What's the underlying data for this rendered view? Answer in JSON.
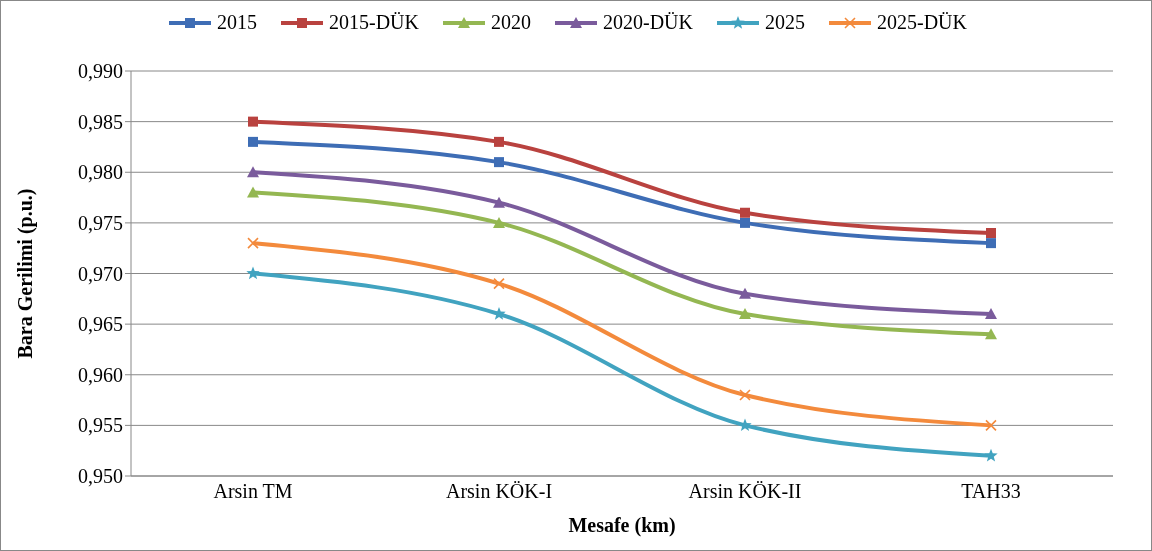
{
  "chart_data": {
    "type": "line",
    "xlabel": "Mesafe (km)",
    "ylabel": "Bara  Gerilimi (p.u.)",
    "categories": [
      "Arsin TM",
      "Arsin KÖK-I",
      "Arsin KÖK-II",
      "TAH33"
    ],
    "series": [
      {
        "name": "2015",
        "color": "#3e6db5",
        "marker": "square",
        "values": [
          0.983,
          0.981,
          0.975,
          0.973
        ]
      },
      {
        "name": "2015-DÜK",
        "color": "#b9423f",
        "marker": "square",
        "values": [
          0.985,
          0.983,
          0.976,
          0.974
        ]
      },
      {
        "name": "2020",
        "color": "#94b752",
        "marker": "triangle",
        "values": [
          0.978,
          0.975,
          0.966,
          0.964
        ]
      },
      {
        "name": "2020-DÜK",
        "color": "#7a5b9c",
        "marker": "triangle",
        "values": [
          0.98,
          0.977,
          0.968,
          0.966
        ]
      },
      {
        "name": "2025",
        "color": "#41a3c0",
        "marker": "star",
        "values": [
          0.97,
          0.966,
          0.955,
          0.952
        ]
      },
      {
        "name": "2025-DÜK",
        "color": "#f38a3c",
        "marker": "cross",
        "values": [
          0.973,
          0.969,
          0.958,
          0.955
        ]
      }
    ],
    "ylim": [
      0.95,
      0.99
    ],
    "yticks": [
      {
        "value": 0.95,
        "label": "0,950"
      },
      {
        "value": 0.955,
        "label": "0,955"
      },
      {
        "value": 0.96,
        "label": "0,960"
      },
      {
        "value": 0.965,
        "label": "0,965"
      },
      {
        "value": 0.97,
        "label": "0,970"
      },
      {
        "value": 0.975,
        "label": "0,975"
      },
      {
        "value": 0.98,
        "label": "0,980"
      },
      {
        "value": 0.985,
        "label": "0,985"
      },
      {
        "value": 0.99,
        "label": "0,990"
      }
    ],
    "grid": "y",
    "legend": "top",
    "line_style": "solid"
  }
}
